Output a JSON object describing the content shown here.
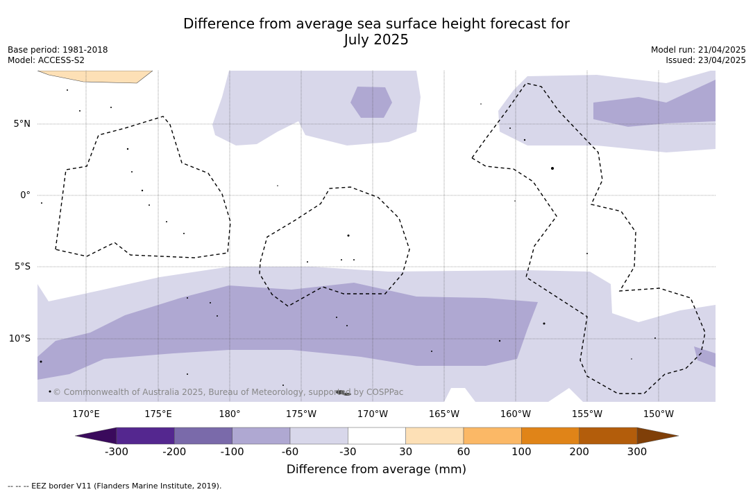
{
  "title": {
    "line1": "Difference from average sea surface height forecast for",
    "line2": "July 2025"
  },
  "meta_left": {
    "base_period": "Base period: 1981-2018",
    "model": "Model: ACCESS-S2"
  },
  "meta_right": {
    "model_run": "Model run: 21/04/2025",
    "issued": "Issued: 23/04/2025"
  },
  "map": {
    "lat_labels": [
      "5°N",
      "0°",
      "5°S",
      "10°S"
    ],
    "lon_labels": [
      "170°E",
      "175°E",
      "180°",
      "175°W",
      "170°W",
      "165°W",
      "160°W",
      "155°W",
      "150°W"
    ],
    "copyright": "© Commonwealth of Australia 2025, Bureau of Meteorology, supported by COSPPac"
  },
  "colorbar": {
    "ticks": [
      "-300",
      "-200",
      "-100",
      "-60",
      "-30",
      "30",
      "60",
      "100",
      "200",
      "300"
    ],
    "colors": [
      "#54278f",
      "#7a6aaa",
      "#afa8d2",
      "#d8d7ea",
      "#ffffff",
      "#fde0b6",
      "#fbb866",
      "#e08418",
      "#b35d0b"
    ],
    "end_low": "#3a0a5c",
    "end_high": "#7f3f08",
    "label": "Difference from average (mm)"
  },
  "footnote": "--  --  -- EEZ border V11 (Flanders Marine Institute, 2019)."
}
